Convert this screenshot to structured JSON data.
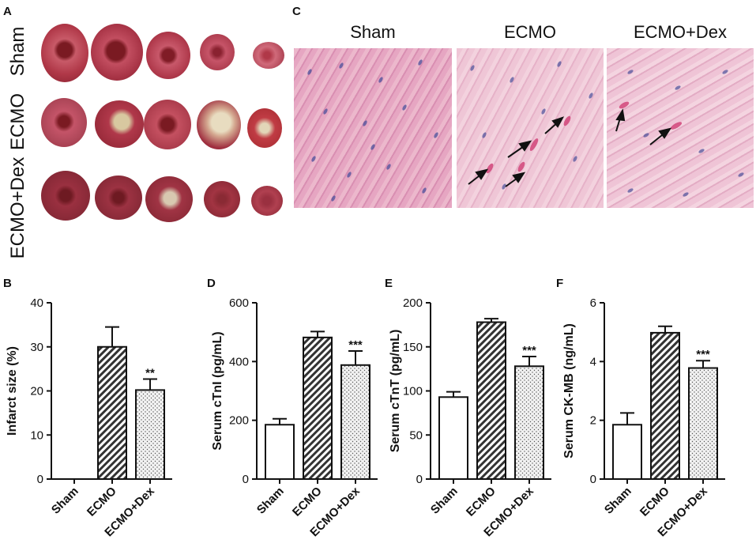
{
  "panels": {
    "a": {
      "letter": "A",
      "rows": [
        "Sham",
        "ECMO",
        "ECMO+Dex"
      ]
    },
    "b": {
      "letter": "B"
    },
    "c": {
      "letter": "C",
      "titles": [
        "Sham",
        "ECMO",
        "ECMO+Dex"
      ]
    },
    "d": {
      "letter": "D"
    },
    "e": {
      "letter": "E"
    },
    "f": {
      "letter": "F"
    }
  },
  "colors": {
    "sham_fill": "#ffffff",
    "ecmo_fill": "#9e9e9e",
    "dex_fill": "#d8d8d8",
    "stroke": "#111111",
    "tissue": "#e8a9c2"
  },
  "chart_data": [
    {
      "id": "B",
      "type": "bar",
      "categories": [
        "Sham",
        "ECMO",
        "ECMO+Dex"
      ],
      "values": [
        0,
        30,
        20.2
      ],
      "errors": [
        0,
        4.5,
        2.5
      ],
      "significance": [
        "",
        "",
        "**"
      ],
      "ylabel": "Infarct size (%)",
      "ylim": [
        0,
        40
      ],
      "yticks": [
        0,
        10,
        20,
        30,
        40
      ],
      "patterns": [
        "none",
        "diagonal",
        "dots"
      ]
    },
    {
      "id": "D",
      "type": "bar",
      "categories": [
        "Sham",
        "ECMO",
        "ECMO+Dex"
      ],
      "values": [
        185,
        482,
        388
      ],
      "errors": [
        20,
        20,
        48
      ],
      "significance": [
        "",
        "",
        "***"
      ],
      "ylabel": "Serum cTnI (pg/mL)",
      "ylim": [
        0,
        600
      ],
      "yticks": [
        0,
        200,
        400,
        600
      ],
      "patterns": [
        "none",
        "diagonal",
        "dots"
      ]
    },
    {
      "id": "E",
      "type": "bar",
      "categories": [
        "Sham",
        "ECMO",
        "ECMO+Dex"
      ],
      "values": [
        93,
        178,
        128
      ],
      "errors": [
        6,
        4,
        11
      ],
      "significance": [
        "",
        "",
        "***"
      ],
      "ylabel": "Serum cTnT (pg/mL)",
      "ylim": [
        0,
        200
      ],
      "yticks": [
        0,
        50,
        100,
        150,
        200
      ],
      "patterns": [
        "none",
        "diagonal",
        "dots"
      ]
    },
    {
      "id": "F",
      "type": "bar",
      "categories": [
        "Sham",
        "ECMO",
        "ECMO+Dex"
      ],
      "values": [
        1.85,
        4.98,
        3.78
      ],
      "errors": [
        0.4,
        0.22,
        0.25
      ],
      "significance": [
        "",
        "",
        "***"
      ],
      "ylabel": "Serum CK-MB (ng/mL)",
      "ylim": [
        0,
        6
      ],
      "yticks": [
        0,
        2,
        4,
        6
      ],
      "patterns": [
        "none",
        "diagonal",
        "dots"
      ]
    }
  ]
}
